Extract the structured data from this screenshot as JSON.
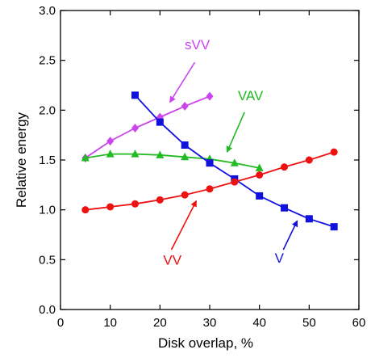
{
  "chart_data": {
    "type": "line",
    "xlabel": "Disk overlap, %",
    "ylabel": "Relative energy",
    "xlim": [
      0,
      60
    ],
    "ylim": [
      0,
      3.0
    ],
    "xticks": [
      0,
      10,
      20,
      30,
      40,
      50,
      60
    ],
    "yticks": [
      0.0,
      0.5,
      1.0,
      1.5,
      2.0,
      2.5,
      3.0
    ],
    "xtick_labels": [
      "0",
      "10",
      "20",
      "30",
      "40",
      "50",
      "60"
    ],
    "ytick_labels": [
      "0.0",
      "0.5",
      "1.0",
      "1.5",
      "2.0",
      "2.5",
      "3.0"
    ],
    "grid": false,
    "legend": "none",
    "series": [
      {
        "name": "sVV",
        "color": "#cc44ee",
        "marker": "diamond",
        "x": [
          5,
          10,
          15,
          20,
          25,
          30
        ],
        "y": [
          1.52,
          1.69,
          1.82,
          1.93,
          2.04,
          2.14
        ]
      },
      {
        "name": "VAV",
        "color": "#22bb22",
        "marker": "triangle",
        "x": [
          5,
          10,
          15,
          20,
          25,
          30,
          35,
          40
        ],
        "y": [
          1.52,
          1.56,
          1.56,
          1.55,
          1.53,
          1.51,
          1.47,
          1.42
        ]
      },
      {
        "name": "V",
        "color": "#1111dd",
        "marker": "square",
        "x": [
          15,
          20,
          25,
          30,
          35,
          40,
          45,
          50,
          55
        ],
        "y": [
          2.15,
          1.88,
          1.65,
          1.47,
          1.31,
          1.14,
          1.02,
          0.91,
          0.83
        ]
      },
      {
        "name": "VV",
        "color": "#ee1111",
        "marker": "circle",
        "x": [
          5,
          10,
          15,
          20,
          25,
          30,
          35,
          40,
          45,
          50,
          55
        ],
        "y": [
          1.0,
          1.03,
          1.06,
          1.1,
          1.15,
          1.21,
          1.28,
          1.35,
          1.43,
          1.5,
          1.58
        ]
      }
    ],
    "annotations": [
      {
        "text": "sVV",
        "series": "sVV",
        "color": "#cc44ee",
        "label_at": [
          27.5,
          2.61
        ],
        "arrow_from": [
          27.0,
          2.48
        ],
        "arrow_to": [
          22.0,
          2.08
        ]
      },
      {
        "text": "VAV",
        "series": "VAV",
        "color": "#22bb22",
        "label_at": [
          38.2,
          2.1
        ],
        "arrow_from": [
          37.0,
          1.98
        ],
        "arrow_to": [
          33.5,
          1.58
        ]
      },
      {
        "text": "VV",
        "series": "VV",
        "color": "#ee1111",
        "label_at": [
          22.5,
          0.45
        ],
        "arrow_from": [
          22.3,
          0.6
        ],
        "arrow_to": [
          27.3,
          1.09
        ]
      },
      {
        "text": "V",
        "series": "V",
        "color": "#1111dd",
        "label_at": [
          44.0,
          0.47
        ],
        "arrow_from": [
          44.8,
          0.6
        ],
        "arrow_to": [
          47.6,
          0.89
        ]
      }
    ]
  }
}
